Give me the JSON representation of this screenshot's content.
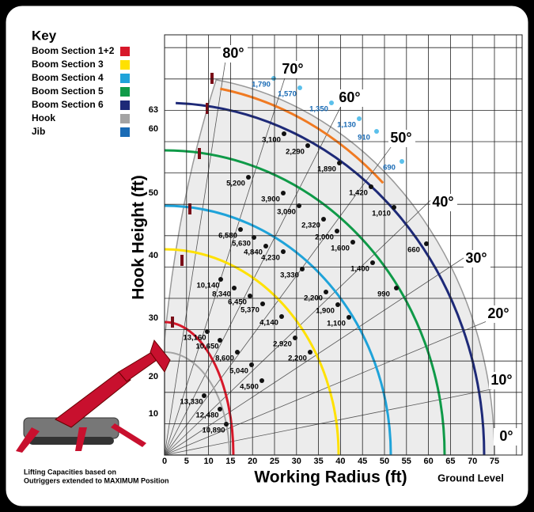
{
  "key": {
    "title": "Key",
    "items": [
      {
        "label": "Boom Section 1+2",
        "color": "#d7182a"
      },
      {
        "label": "Boom Section 3",
        "color": "#ffe100"
      },
      {
        "label": "Boom Section 4",
        "color": "#1fa3d9"
      },
      {
        "label": "Boom Section 5",
        "color": "#0f9a48"
      },
      {
        "label": "Boom Section 6",
        "color": "#1e2a78"
      },
      {
        "label": "Hook",
        "color": "#a3a3a3"
      },
      {
        "label": "Jib",
        "color": "#1a6bb5"
      }
    ]
  },
  "y_axis": {
    "label": "Hook Height (ft)",
    "ticks": [
      "10",
      "20",
      "30",
      "40",
      "50",
      "60",
      "63"
    ]
  },
  "x_axis": {
    "label": "Working Radius (ft)",
    "ticks": [
      "0",
      "5",
      "10",
      "15",
      "20",
      "25",
      "30",
      "35",
      "40",
      "45",
      "50",
      "55",
      "60",
      "65",
      "70",
      "75"
    ]
  },
  "angles": [
    "80°",
    "70°",
    "60°",
    "50°",
    "40°",
    "30°",
    "20°",
    "10°",
    "0°"
  ],
  "capacities": [
    [
      "1,790",
      "1,570",
      "1,350",
      "1,130",
      "910",
      "690"
    ],
    [
      "3,100",
      "2,290",
      "1,890",
      "1,420",
      "1,010",
      "660"
    ],
    [
      "5,200",
      "3,900",
      "3,090",
      "2,320",
      "2,000",
      "1,600",
      "1,400",
      "990"
    ],
    [
      "6,580",
      "5,630",
      "4,840",
      "4,230",
      "3,330",
      "2,200",
      "1,900",
      "1,100"
    ],
    [
      "10,140",
      "8,340",
      "6,450",
      "5,370",
      "4,140",
      "2,920",
      "2,200"
    ],
    [
      "13,160",
      "10,650",
      "8,600",
      "5,040",
      "4,500"
    ],
    [
      "13,330",
      "12,480",
      "10,890"
    ]
  ],
  "ground_label": "Ground Level",
  "note": [
    "Lifting Capacities based on",
    "Outriggers extended to MAXIMUM Position"
  ]
}
